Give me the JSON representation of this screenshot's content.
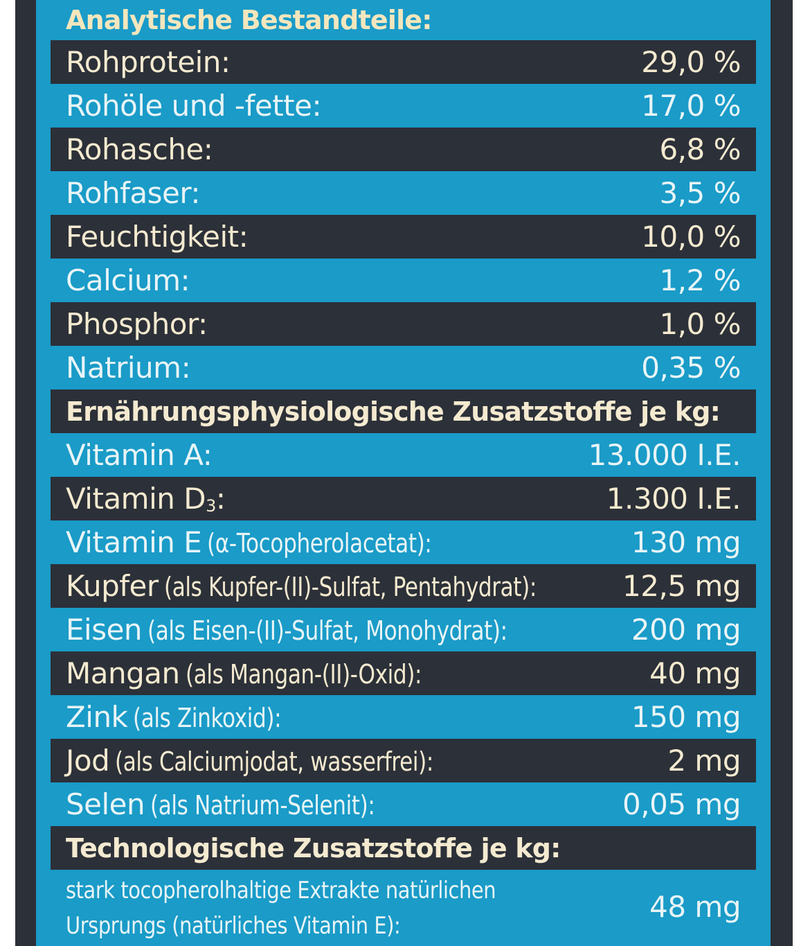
{
  "sections": [
    {
      "title": "Analytische Bestandteile:",
      "rows": [
        {
          "label": "Rohprotein:",
          "value": "29,0 %"
        },
        {
          "label": "Rohöle und -fette:",
          "value": "17,0 %"
        },
        {
          "label": "Rohasche:",
          "value": "6,8 %"
        },
        {
          "label": "Rohfaser:",
          "value": "3,5 %"
        },
        {
          "label": "Feuchtigkeit:",
          "value": "10,0 %"
        },
        {
          "label": "Calcium:",
          "value": "1,2 %"
        },
        {
          "label": "Phosphor:",
          "value": "1,0 %"
        },
        {
          "label": "Natrium:",
          "value": "0,35 %"
        }
      ]
    },
    {
      "title": "Ernährungsphysiologische Zusatzstoffe je kg:",
      "rows": [
        {
          "label": "Vitamin A:",
          "value": "13.000 I.E."
        },
        {
          "label": "Vitamin D",
          "sub": "3",
          "suffix": ":",
          "value": "1.300 I.E."
        },
        {
          "label": "Vitamin E",
          "note": "(α-Tocopherolacetat):",
          "value": "130 mg"
        },
        {
          "label": "Kupfer",
          "note": "(als Kupfer-(II)-Sulfat, Pentahydrat):",
          "value": "12,5 mg"
        },
        {
          "label": "Eisen",
          "note": "(als Eisen-(II)-Sulfat, Monohydrat):",
          "value": "200 mg"
        },
        {
          "label": "Mangan",
          "note": "(als Mangan-(II)-Oxid):",
          "value": "40 mg"
        },
        {
          "label": "Zink",
          "note": "(als Zinkoxid):",
          "value": "150 mg"
        },
        {
          "label": "Jod",
          "note": "(als Calciumjodat, wasserfrei):",
          "value": "2 mg"
        },
        {
          "label": "Selen",
          "note": "(als Natrium-Selenit):",
          "value": "0,05 mg"
        }
      ]
    },
    {
      "title": "Technologische Zusatzstoffe je kg:",
      "rows": [
        {
          "lines": [
            "stark tocopherolhaltige Extrakte natürlichen",
            "Ursprungs (natürliches Vitamin E):"
          ],
          "value": "48 mg"
        }
      ]
    }
  ]
}
